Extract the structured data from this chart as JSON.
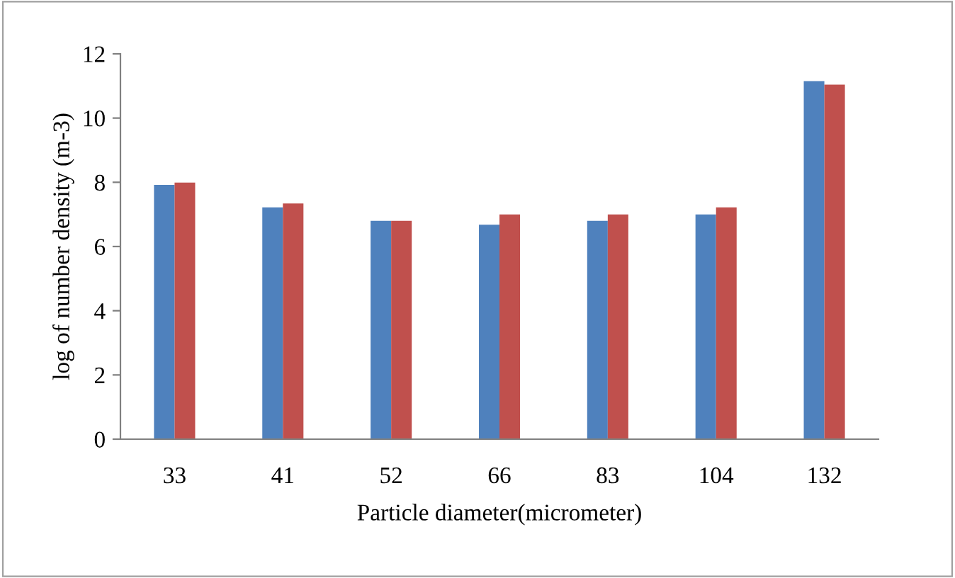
{
  "chart_data": {
    "type": "bar",
    "xlabel": "Particle diameter(micrometer)",
    "ylabel": "log of number density (m-3)",
    "categories": [
      "33",
      "41",
      "52",
      "66",
      "83",
      "104",
      "132"
    ],
    "series": [
      {
        "color": "#4f81bd",
        "values": [
          7.92,
          7.22,
          6.8,
          6.68,
          6.8,
          7.0,
          11.15
        ]
      },
      {
        "color": "#c0504d",
        "values": [
          7.99,
          7.34,
          6.8,
          7.0,
          7.0,
          7.22,
          11.04
        ]
      }
    ],
    "ylim": [
      0,
      12
    ],
    "yticks": [
      0,
      2,
      4,
      6,
      8,
      10,
      12
    ],
    "grid": false
  }
}
